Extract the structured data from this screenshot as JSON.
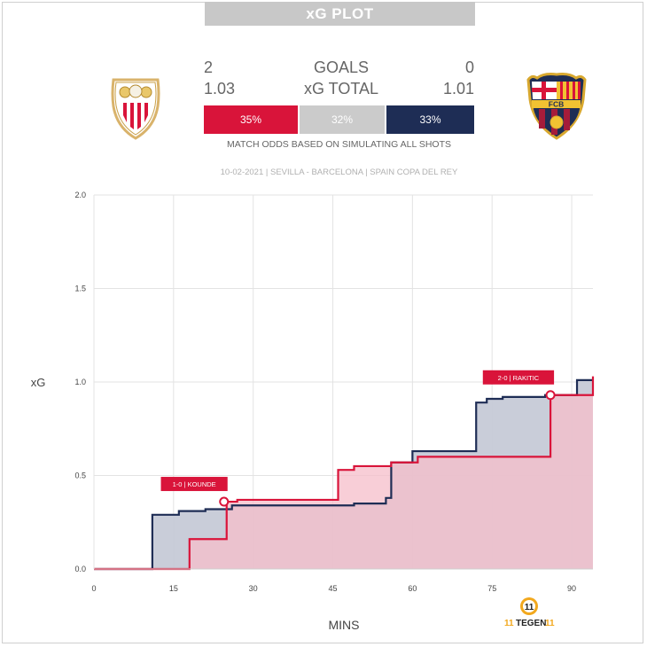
{
  "header": {
    "title": "xG PLOT",
    "goals_label": "GOALS",
    "xg_label": "xG TOTAL",
    "home": {
      "goals": "2",
      "xg": "1.03",
      "color": "#d9143a"
    },
    "away": {
      "goals": "0",
      "xg": "1.01",
      "color": "#1e2d55"
    },
    "odds": {
      "home": "35%",
      "draw": "32%",
      "away": "33%"
    },
    "odds_note": "MATCH ODDS BASED ON SIMULATING ALL SHOTS",
    "match_info": "10-02-2021 | SEVILLA - BARCELONA | SPAIN COPA DEL REY"
  },
  "crests": {
    "away_text": "FCB"
  },
  "brand": {
    "prefix": "11",
    "name": "TEGEN",
    "suffix": "11"
  },
  "chart_data": {
    "type": "area",
    "xlabel": "MINS",
    "ylabel": "xG",
    "xlim": [
      0,
      94
    ],
    "ylim": [
      0,
      2.0
    ],
    "x_ticks": [
      0,
      15,
      30,
      45,
      60,
      75,
      90
    ],
    "y_ticks": [
      0.0,
      0.5,
      1.0,
      1.5,
      2.0
    ],
    "y_tick_labels": [
      "0.0",
      "0.5",
      "1.0",
      "1.5",
      "2.0"
    ],
    "grid": true,
    "series": [
      {
        "color": "#1e2d55",
        "fill": "#c6cad7",
        "steps": [
          [
            0,
            0
          ],
          [
            11,
            0.29
          ],
          [
            16,
            0.31
          ],
          [
            19,
            0.31
          ],
          [
            21,
            0.32
          ],
          [
            23,
            0.32
          ],
          [
            26,
            0.34
          ],
          [
            30,
            0.34
          ],
          [
            49,
            0.35
          ],
          [
            55,
            0.38
          ],
          [
            56,
            0.57
          ],
          [
            60,
            0.63
          ],
          [
            72,
            0.89
          ],
          [
            74,
            0.91
          ],
          [
            77,
            0.92
          ],
          [
            80,
            0.92
          ],
          [
            85,
            0.93
          ],
          [
            91,
            1.01
          ],
          [
            94,
            1.01
          ]
        ]
      },
      {
        "color": "#d9143a",
        "fill": "#f5bdc9",
        "steps": [
          [
            0,
            0
          ],
          [
            18,
            0.16
          ],
          [
            25,
            0.36
          ],
          [
            27,
            0.37
          ],
          [
            37,
            0.37
          ],
          [
            46,
            0.53
          ],
          [
            49,
            0.55
          ],
          [
            55,
            0.55
          ],
          [
            56,
            0.57
          ],
          [
            61,
            0.6
          ],
          [
            86,
            0.93
          ],
          [
            94,
            1.03
          ]
        ]
      }
    ],
    "annotations": [
      {
        "label": "1-0 | KOUNDE",
        "x": 24.5,
        "y": 0.36,
        "color": "#d9143a"
      },
      {
        "label": "2-0 | RAKITIC",
        "x": 86,
        "y": 0.93,
        "color": "#d9143a"
      }
    ]
  }
}
